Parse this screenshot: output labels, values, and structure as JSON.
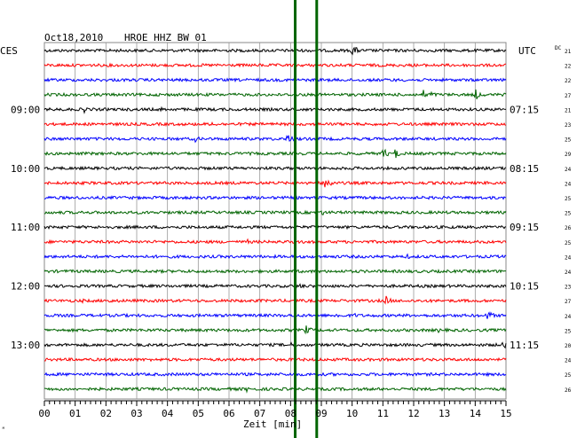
{
  "header": {
    "date": "Oct18,2010",
    "station": "HROE HHZ BW 01",
    "left_tz": "CES",
    "right_tz": "UTC",
    "dc_label": "DC",
    "corner_mark": "ᴹ"
  },
  "chart_data": {
    "type": "line",
    "title": "Oct18,2010   HROE HHZ BW 01",
    "xlabel": "Zeit [min]",
    "ylabel": "",
    "xlim": [
      0,
      15
    ],
    "x_ticks": [
      "00",
      "01",
      "02",
      "03",
      "04",
      "05",
      "06",
      "07",
      "08",
      "09",
      "10",
      "11",
      "12",
      "13",
      "14",
      "15"
    ],
    "trace_colors": [
      "#000000",
      "#ff0000",
      "#0000ff",
      "#006400"
    ],
    "left_hour_labels": [
      {
        "trace": 4,
        "label": "09:00"
      },
      {
        "trace": 8,
        "label": "10:00"
      },
      {
        "trace": 12,
        "label": "11:00"
      },
      {
        "trace": 16,
        "label": "12:00"
      },
      {
        "trace": 20,
        "label": "13:00"
      }
    ],
    "right_hour_labels": [
      {
        "trace": 4,
        "label": "07:15"
      },
      {
        "trace": 8,
        "label": "08:15"
      },
      {
        "trace": 12,
        "label": "09:15"
      },
      {
        "trace": 16,
        "label": "10:15"
      },
      {
        "trace": 20,
        "label": "11:15"
      }
    ],
    "dc_values": [
      "21",
      "22",
      "22",
      "27",
      "21",
      "23",
      "25",
      "29",
      "24",
      "24",
      "25",
      "25",
      "26",
      "25",
      "24",
      "24",
      "23",
      "27",
      "24",
      "25",
      "20",
      "24",
      "25",
      "26"
    ],
    "overlay_lines_x": [
      8.15,
      8.85
    ],
    "events": [
      {
        "trace": 0,
        "x": 10.0,
        "amp": 8
      },
      {
        "trace": 1,
        "x": 7.0,
        "amp": 2
      },
      {
        "trace": 3,
        "x": 12.3,
        "amp": 6
      },
      {
        "trace": 3,
        "x": 12.55,
        "amp": 5
      },
      {
        "trace": 3,
        "x": 14.0,
        "amp": 7
      },
      {
        "trace": 4,
        "x": 1.3,
        "amp": 4
      },
      {
        "trace": 4,
        "x": 3.8,
        "amp": 3
      },
      {
        "trace": 5,
        "x": 5.4,
        "amp": 4
      },
      {
        "trace": 6,
        "x": 4.9,
        "amp": 4
      },
      {
        "trace": 6,
        "x": 5.5,
        "amp": 2
      },
      {
        "trace": 6,
        "x": 7.9,
        "amp": 8
      },
      {
        "trace": 7,
        "x": 11.0,
        "amp": 7
      },
      {
        "trace": 7,
        "x": 11.4,
        "amp": 6
      },
      {
        "trace": 9,
        "x": 9.1,
        "amp": 12
      },
      {
        "trace": 9,
        "x": 14.4,
        "amp": 3
      },
      {
        "trace": 11,
        "x": 9.0,
        "amp": 4
      },
      {
        "trace": 13,
        "x": 6.6,
        "amp": 3
      },
      {
        "trace": 14,
        "x": 11.8,
        "amp": 3
      },
      {
        "trace": 16,
        "x": 0.7,
        "amp": 3
      },
      {
        "trace": 16,
        "x": 8.3,
        "amp": 4
      },
      {
        "trace": 17,
        "x": 1.2,
        "amp": 3
      },
      {
        "trace": 17,
        "x": 2.1,
        "amp": 3
      },
      {
        "trace": 17,
        "x": 11.1,
        "amp": 6
      },
      {
        "trace": 17,
        "x": 12.6,
        "amp": 2
      },
      {
        "trace": 18,
        "x": 9.5,
        "amp": 4
      },
      {
        "trace": 18,
        "x": 10.1,
        "amp": 3
      },
      {
        "trace": 18,
        "x": 14.4,
        "amp": 7
      },
      {
        "trace": 19,
        "x": 7.3,
        "amp": 2
      },
      {
        "trace": 19,
        "x": 8.5,
        "amp": 6
      },
      {
        "trace": 19,
        "x": 12.8,
        "amp": 3
      },
      {
        "trace": 20,
        "x": 8.0,
        "amp": 3
      },
      {
        "trace": 20,
        "x": 14.9,
        "amp": 6
      },
      {
        "trace": 21,
        "x": 0.3,
        "amp": 3
      },
      {
        "trace": 23,
        "x": 6.5,
        "amp": 5
      },
      {
        "trace": 23,
        "x": 12.8,
        "amp": 3
      }
    ]
  }
}
